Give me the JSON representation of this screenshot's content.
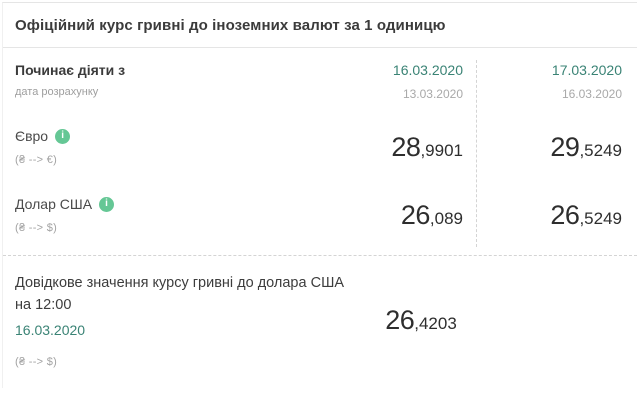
{
  "title": "Офіційний курс гривні до іноземних валют за 1 одиницю",
  "header": {
    "label": "Починає діяти з",
    "sublabel": "дата розрахунку",
    "col1": {
      "effective": "16.03.2020",
      "calculation": "13.03.2020"
    },
    "col2": {
      "effective": "17.03.2020",
      "calculation": "16.03.2020"
    }
  },
  "rows": [
    {
      "currency": "Євро",
      "pair": "(₴ --> €)",
      "val1": {
        "int": "28",
        "frac": ",9901"
      },
      "val2": {
        "int": "29",
        "frac": ",5249"
      }
    },
    {
      "currency": "Долар США",
      "pair": "(₴ --> $)",
      "val1": {
        "int": "26",
        "frac": ",089"
      },
      "val2": {
        "int": "26",
        "frac": ",5249"
      }
    }
  ],
  "reference": {
    "title": "Довідкове значення курсу гривні до долара США на 12:00",
    "date": "16.03.2020",
    "pair": "(₴ --> $)",
    "value": {
      "int": "26",
      "frac": ",4203"
    }
  },
  "icons": {
    "info_glyph": "i"
  },
  "colors": {
    "accent_teal": "#3a8375",
    "info_green": "#65c795",
    "text_dark": "#333333",
    "text_gray": "#9e9e9e",
    "border": "#e5e5e5"
  }
}
